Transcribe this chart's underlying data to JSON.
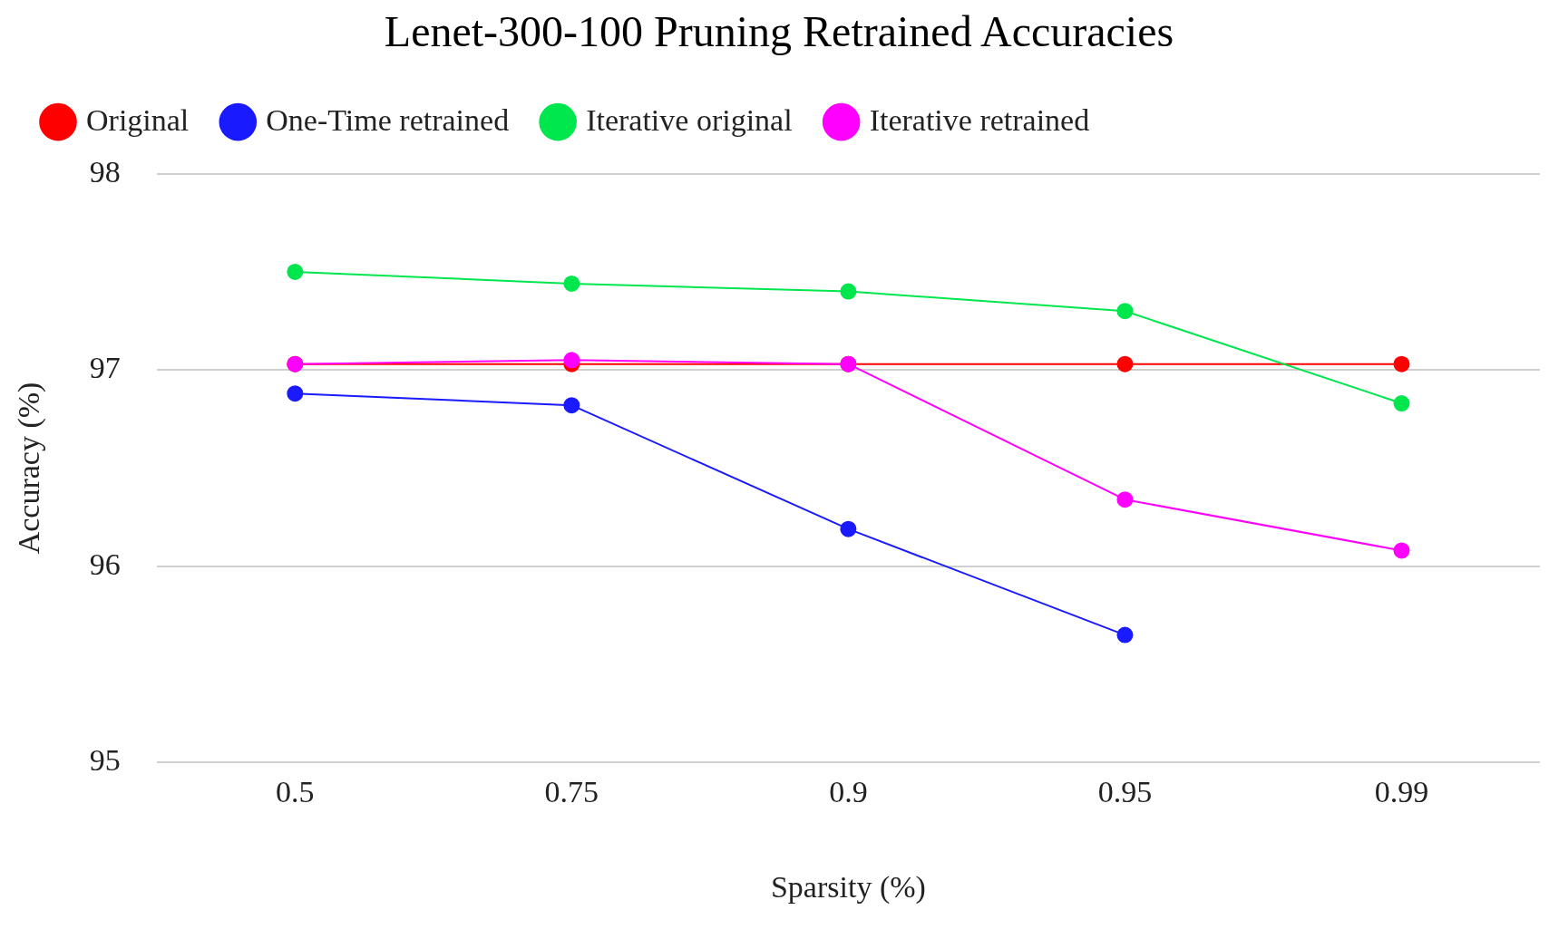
{
  "chart_data": {
    "type": "line",
    "title": "Lenet-300-100 Pruning Retrained Accuracies",
    "xlabel": "Sparsity (%)",
    "ylabel": "Accuracy (%)",
    "categories": [
      "0.5",
      "0.75",
      "0.9",
      "0.95",
      "0.99"
    ],
    "series": [
      {
        "name": "Original",
        "color": "#ff0000",
        "values": [
          97.03,
          97.03,
          97.03,
          97.03,
          97.03
        ]
      },
      {
        "name": "One-Time retrained",
        "color": "#1a1aff",
        "values": [
          96.88,
          96.82,
          96.19,
          95.65,
          null
        ]
      },
      {
        "name": "Iterative original",
        "color": "#00e64d",
        "values": [
          97.5,
          97.44,
          97.4,
          97.3,
          96.83
        ]
      },
      {
        "name": "Iterative retrained",
        "color": "#ff00ff",
        "values": [
          97.03,
          97.05,
          97.03,
          96.34,
          96.08
        ]
      }
    ],
    "ylim": [
      95,
      98
    ],
    "yticks": [
      95,
      96,
      97,
      98
    ],
    "grid": "y",
    "legend": "top left",
    "marker": "circle",
    "line_style": "solid"
  }
}
